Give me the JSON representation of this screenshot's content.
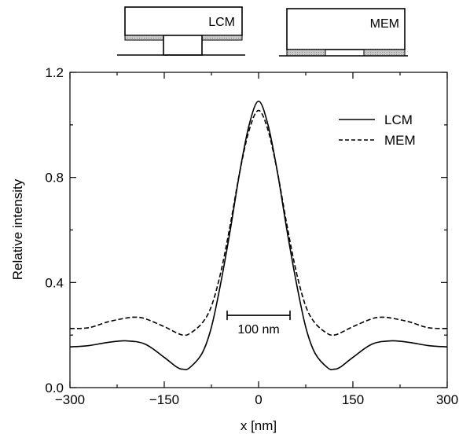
{
  "chart_data": {
    "type": "line",
    "title": "",
    "xlabel": "x [nm]",
    "ylabel": "Relative intensity",
    "xlim": [
      -300,
      300
    ],
    "ylim": [
      0,
      1.2
    ],
    "xticks": [
      -300,
      -150,
      0,
      150,
      300
    ],
    "xtick_labels": [
      "−300",
      "−150",
      "0",
      "150",
      "300"
    ],
    "yticks": [
      0,
      0.4,
      0.8,
      1.2
    ],
    "ytick_labels": [
      "0.0",
      "0.4",
      "0.8",
      "1.2"
    ],
    "grid": false,
    "legend": {
      "placement": "top-right"
    },
    "series": [
      {
        "name": "LCM",
        "style": "solid",
        "color": "#000000",
        "x": [
          -300,
          -270,
          -240,
          -210,
          -180,
          -150,
          -130,
          -120,
          -110,
          -90,
          -75,
          -60,
          -45,
          -30,
          -15,
          0,
          15,
          30,
          45,
          60,
          75,
          90,
          110,
          120,
          130,
          150,
          180,
          210,
          240,
          270,
          300
        ],
        "y": [
          0.155,
          0.16,
          0.172,
          0.178,
          0.165,
          0.115,
          0.078,
          0.07,
          0.075,
          0.13,
          0.23,
          0.4,
          0.6,
          0.82,
          1.0,
          1.09,
          1.0,
          0.82,
          0.6,
          0.4,
          0.23,
          0.13,
          0.075,
          0.07,
          0.078,
          0.115,
          0.165,
          0.178,
          0.172,
          0.16,
          0.155
        ]
      },
      {
        "name": "MEM",
        "style": "dashed",
        "color": "#000000",
        "x": [
          -300,
          -270,
          -240,
          -210,
          -195,
          -180,
          -150,
          -130,
          -120,
          -110,
          -90,
          -75,
          -60,
          -45,
          -30,
          -15,
          0,
          15,
          30,
          45,
          60,
          75,
          90,
          110,
          120,
          130,
          150,
          180,
          195,
          210,
          240,
          270,
          300
        ],
        "y": [
          0.225,
          0.228,
          0.25,
          0.265,
          0.268,
          0.262,
          0.232,
          0.208,
          0.2,
          0.205,
          0.245,
          0.31,
          0.44,
          0.62,
          0.82,
          0.98,
          1.055,
          0.98,
          0.82,
          0.62,
          0.44,
          0.31,
          0.245,
          0.205,
          0.2,
          0.208,
          0.232,
          0.262,
          0.268,
          0.265,
          0.25,
          0.228,
          0.225
        ]
      }
    ],
    "annotations": [
      {
        "text": "100 nm",
        "from_x": -50,
        "to_x": 50,
        "y": 0.275
      }
    ]
  },
  "insets": [
    {
      "label": "LCM"
    },
    {
      "label": "MEM"
    }
  ]
}
